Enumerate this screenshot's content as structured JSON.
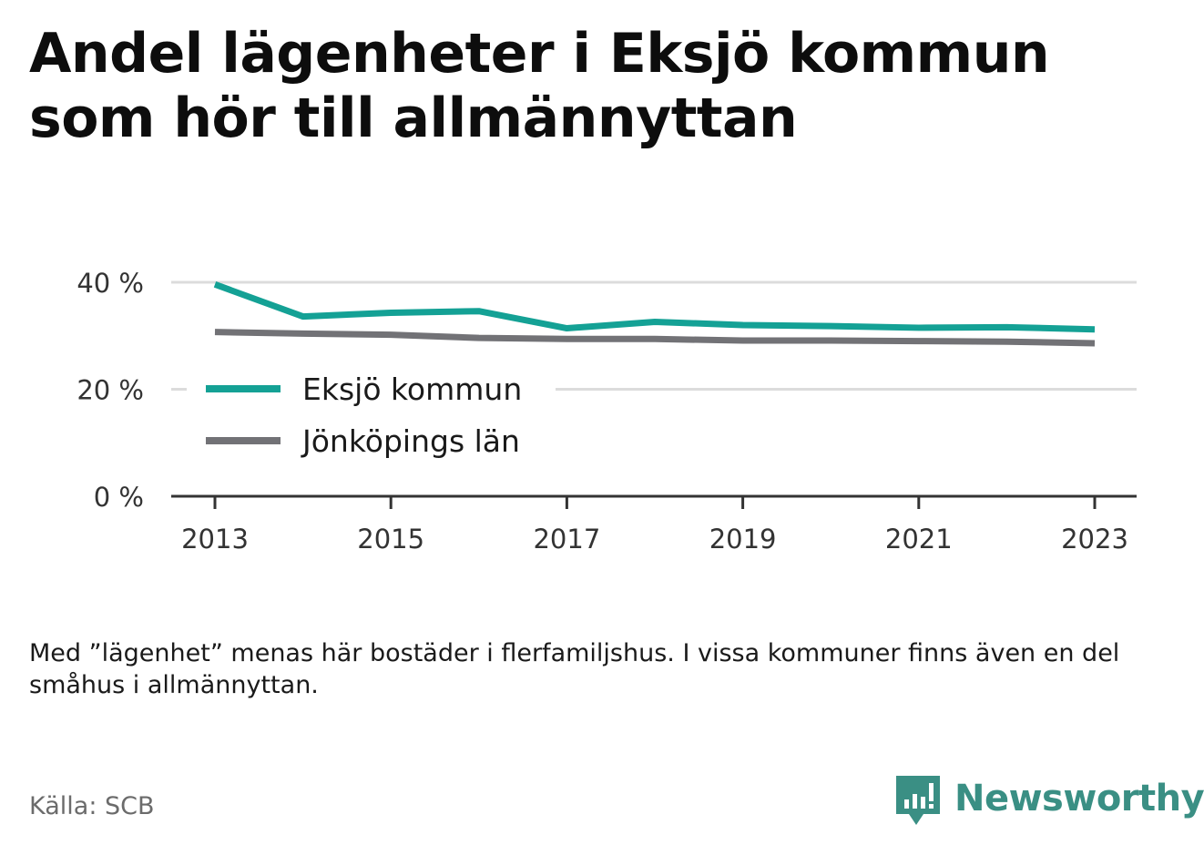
{
  "title": "Andel lägenheter i Eksjö kommun som hör till allmännyttan",
  "note": "Med ”lägenhet” menas här bostäder i flerfamiljshus. I vissa kommuner finns även en del småhus i allmännyttan.",
  "source": "Källa: SCB",
  "brand": {
    "name": "Newsworthy",
    "icon": "newsworthy-logo-icon",
    "color": "#3a8f84"
  },
  "chart_data": {
    "type": "line",
    "x": [
      2013,
      2014,
      2015,
      2016,
      2017,
      2018,
      2019,
      2020,
      2021,
      2022,
      2023
    ],
    "x_tick_labels": [
      "2013",
      "2015",
      "2017",
      "2019",
      "2021",
      "2023"
    ],
    "y_tick_labels": [
      "0 %",
      "20 %",
      "40 %"
    ],
    "ylim": [
      0,
      40
    ],
    "grid": true,
    "legend_position": "center-left",
    "series": [
      {
        "name": "Eksjö kommun",
        "color": "#14a195",
        "values": [
          39.6,
          33.6,
          34.3,
          34.6,
          31.4,
          32.6,
          32.0,
          31.8,
          31.5,
          31.6,
          31.2
        ]
      },
      {
        "name": "Jönköpings län",
        "color": "#727276",
        "values": [
          30.7,
          30.4,
          30.2,
          29.6,
          29.4,
          29.4,
          29.1,
          29.1,
          29.0,
          28.9,
          28.6
        ]
      }
    ]
  }
}
